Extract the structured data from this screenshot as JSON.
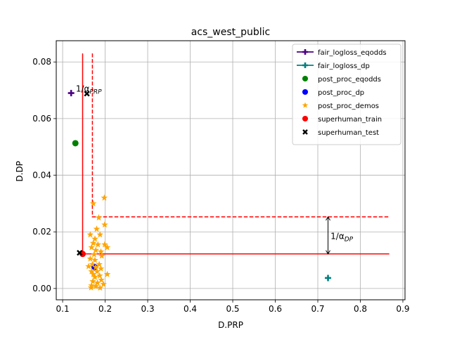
{
  "chart_data": {
    "type": "scatter",
    "title": "acs_west_public",
    "xlabel": "D.PRP",
    "ylabel": "D.DP",
    "xlim": [
      0.085,
      0.905
    ],
    "ylim": [
      -0.004,
      0.0875
    ],
    "xticks": [
      0.1,
      0.2,
      0.3,
      0.4,
      0.5,
      0.6,
      0.7,
      0.8,
      0.9
    ],
    "xtick_labels": [
      "0.1",
      "0.2",
      "0.3",
      "0.4",
      "0.5",
      "0.6",
      "0.7",
      "0.8",
      "0.9"
    ],
    "yticks": [
      0.0,
      0.02,
      0.04,
      0.06,
      0.08
    ],
    "ytick_labels": [
      "0.00",
      "0.02",
      "0.04",
      "0.06",
      "0.08"
    ],
    "grid": true,
    "legend_position": "top-right",
    "series": [
      {
        "name": "fair_logloss_eqodds",
        "marker": "plus",
        "line": true,
        "color": "#4b0082",
        "points": [
          [
            0.12,
            0.069
          ]
        ]
      },
      {
        "name": "fair_logloss_dp",
        "marker": "plus",
        "line": true,
        "color": "#008080",
        "points": [
          [
            0.724,
            0.0037
          ]
        ]
      },
      {
        "name": "post_proc_eqodds",
        "marker": "circle",
        "color": "#008000",
        "points": [
          [
            0.13,
            0.0513
          ]
        ]
      },
      {
        "name": "post_proc_dp",
        "marker": "circle",
        "color": "#0000ff",
        "points": [
          [
            0.175,
            0.0076
          ]
        ]
      },
      {
        "name": "post_proc_demos",
        "marker": "star",
        "color": "#ffa500",
        "points": [
          [
            0.198,
            0.032
          ],
          [
            0.172,
            0.03
          ],
          [
            0.185,
            0.025
          ],
          [
            0.199,
            0.0225
          ],
          [
            0.18,
            0.021
          ],
          [
            0.188,
            0.019
          ],
          [
            0.165,
            0.019
          ],
          [
            0.176,
            0.0175
          ],
          [
            0.172,
            0.016
          ],
          [
            0.183,
            0.0155
          ],
          [
            0.199,
            0.0155
          ],
          [
            0.168,
            0.0145
          ],
          [
            0.205,
            0.0145
          ],
          [
            0.178,
            0.0135
          ],
          [
            0.19,
            0.013
          ],
          [
            0.174,
            0.012
          ],
          [
            0.192,
            0.0115
          ],
          [
            0.165,
            0.0105
          ],
          [
            0.176,
            0.01
          ],
          [
            0.17,
            0.0085
          ],
          [
            0.186,
            0.0085
          ],
          [
            0.161,
            0.0078
          ],
          [
            0.178,
            0.0075
          ],
          [
            0.19,
            0.007
          ],
          [
            0.168,
            0.006
          ],
          [
            0.181,
            0.006
          ],
          [
            0.172,
            0.005
          ],
          [
            0.205,
            0.005
          ],
          [
            0.187,
            0.0045
          ],
          [
            0.176,
            0.004
          ],
          [
            0.191,
            0.003
          ],
          [
            0.171,
            0.0025
          ],
          [
            0.182,
            0.002
          ],
          [
            0.196,
            0.0015
          ],
          [
            0.168,
            0.001
          ],
          [
            0.178,
            0.0008
          ],
          [
            0.188,
            0.0002
          ],
          [
            0.167,
            0.0003
          ]
        ]
      },
      {
        "name": "superhuman_train",
        "marker": "circle",
        "color": "#ff0000",
        "points": [
          [
            0.147,
            0.0122
          ]
        ]
      },
      {
        "name": "superhuman_test",
        "marker": "x",
        "color": "#000000",
        "points": [
          [
            0.14,
            0.0126
          ],
          [
            0.157,
            0.0688
          ]
        ]
      }
    ],
    "reference_lines": [
      {
        "role": "train-x",
        "style": "solid",
        "color": "#ff0000",
        "points": [
          [
            0.147,
            0.083
          ],
          [
            0.147,
            0.0122
          ],
          [
            0.868,
            0.0122
          ]
        ]
      },
      {
        "role": "test-x",
        "style": "dashed",
        "color": "#ff0000",
        "points": [
          [
            0.17,
            0.083
          ],
          [
            0.17,
            0.0253
          ],
          [
            0.868,
            0.0253
          ]
        ]
      }
    ],
    "annotations": [
      {
        "id": "alpha_prp",
        "text": "1/αPRP",
        "base": "1/α",
        "sub": "PRP",
        "anchor": [
          0.131,
          0.0695
        ]
      },
      {
        "id": "alpha_dp",
        "text": "1/αDP",
        "base": "1/α",
        "sub": "DP",
        "anchor": [
          0.73,
          0.0175
        ],
        "arrow_x": 0.724,
        "arrow_y": [
          0.0122,
          0.0253
        ]
      }
    ]
  }
}
